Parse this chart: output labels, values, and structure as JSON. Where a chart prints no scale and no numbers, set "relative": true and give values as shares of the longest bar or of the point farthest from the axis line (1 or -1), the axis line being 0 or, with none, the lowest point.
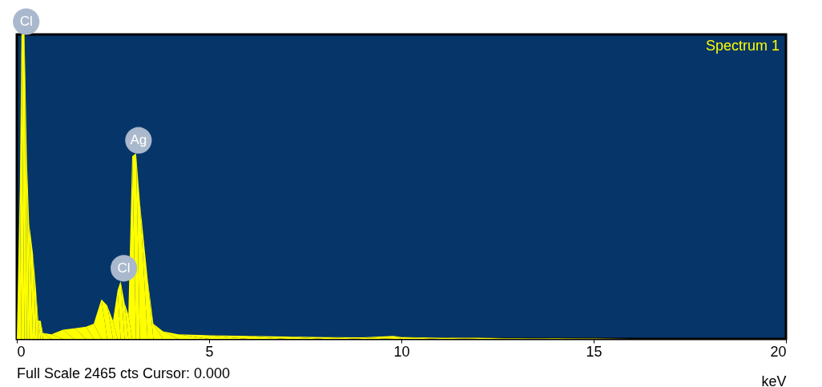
{
  "chart_data": {
    "type": "area",
    "title": "Spectrum 1",
    "xlabel": "keV",
    "relative": true,
    "x": [
      0,
      0.08,
      0.12,
      0.2,
      0.26,
      0.32,
      0.42,
      0.5,
      0.56,
      0.62,
      0.68,
      0.9,
      1.2,
      1.5,
      1.8,
      2.0,
      2.2,
      2.35,
      2.5,
      2.62,
      2.7,
      2.8,
      2.9,
      3.0,
      3.1,
      3.2,
      3.4,
      3.55,
      3.8,
      4.2,
      5,
      6,
      7,
      8,
      9,
      9.8,
      10,
      11,
      12,
      13,
      14,
      15,
      16,
      20
    ],
    "series": [
      {
        "color": "#ffff00",
        "values": [
          0,
          0.5,
          1.0,
          1.0,
          0.6,
          0.38,
          0.28,
          0.16,
          0.06,
          0.06,
          0.02,
          0.015,
          0.03,
          0.035,
          0.04,
          0.05,
          0.13,
          0.11,
          0.06,
          0.16,
          0.19,
          0.12,
          0.08,
          0.6,
          0.61,
          0.45,
          0.2,
          0.05,
          0.025,
          0.015,
          0.012,
          0.01,
          0.008,
          0.006,
          0.005,
          0.01,
          0.006,
          0.004,
          0.004,
          0.002,
          0.002,
          0.001,
          0,
          0
        ]
      }
    ],
    "xlim": [
      0,
      20
    ],
    "xticks": [
      0,
      5,
      10,
      15,
      20
    ],
    "grid": false,
    "annotations": [
      {
        "text": "Cl",
        "x": 0.16,
        "y": 1.0
      },
      {
        "text": "Ag",
        "x": 3.08,
        "y": 0.61
      },
      {
        "text": "Cl",
        "x": 2.7,
        "y": 0.19
      },
      "Full Scale 2465 cts Cursor: 0.000"
    ]
  }
}
